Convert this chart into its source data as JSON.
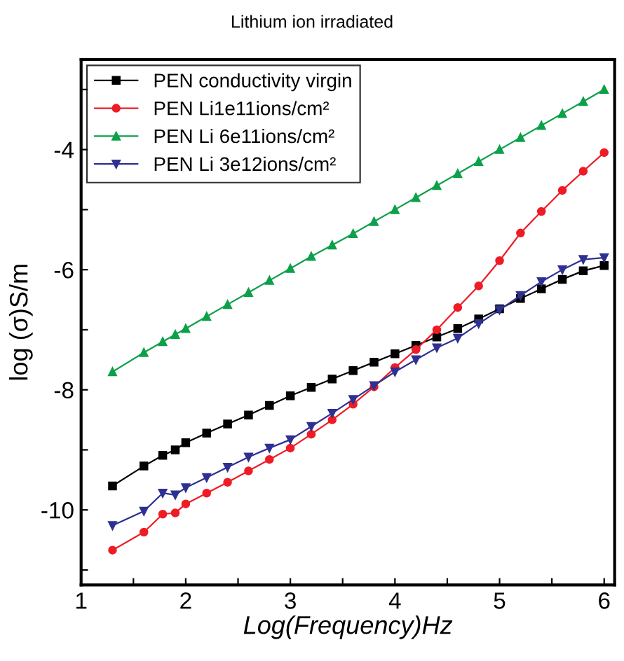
{
  "chart_data": {
    "type": "line",
    "title": "Lithium ion irradiated",
    "xlabel": "Log(Frequency)Hz",
    "ylabel": "log (σ)S/m",
    "x": [
      1.3,
      1.6,
      1.78,
      1.9,
      2.0,
      2.2,
      2.4,
      2.6,
      2.8,
      3.0,
      3.2,
      3.4,
      3.6,
      3.8,
      4.0,
      4.2,
      4.4,
      4.6,
      4.8,
      5.0,
      5.2,
      5.4,
      5.6,
      5.8,
      6.0
    ],
    "series": [
      {
        "name": "PEN conductivity virgin",
        "color": "#000000",
        "marker": "square",
        "values": [
          -9.6,
          -9.27,
          -9.09,
          -9.0,
          -8.88,
          -8.72,
          -8.57,
          -8.42,
          -8.26,
          -8.1,
          -7.96,
          -7.82,
          -7.68,
          -7.54,
          -7.4,
          -7.26,
          -7.12,
          -6.98,
          -6.82,
          -6.65,
          -6.48,
          -6.32,
          -6.16,
          -6.02,
          -5.93
        ]
      },
      {
        "name": "PEN Li1e11ions/cm²",
        "color": "#ee1c25",
        "marker": "circle",
        "values": [
          -10.67,
          -10.37,
          -10.07,
          -10.05,
          -9.9,
          -9.72,
          -9.54,
          -9.35,
          -9.16,
          -8.97,
          -8.74,
          -8.5,
          -8.24,
          -7.95,
          -7.63,
          -7.33,
          -7.0,
          -6.63,
          -6.27,
          -5.85,
          -5.39,
          -5.03,
          -4.68,
          -4.36,
          -4.05
        ]
      },
      {
        "name": "PEN Li 6e11ions/cm²",
        "color": "#0da04a",
        "marker": "triangle",
        "values": [
          -7.7,
          -7.38,
          -7.2,
          -7.08,
          -6.98,
          -6.78,
          -6.58,
          -6.38,
          -6.18,
          -5.98,
          -5.78,
          -5.59,
          -5.4,
          -5.2,
          -5.0,
          -4.8,
          -4.6,
          -4.4,
          -4.2,
          -4.0,
          -3.8,
          -3.6,
          -3.4,
          -3.2,
          -3.0
        ]
      },
      {
        "name": "PEN Li 3e12ions/cm²",
        "color": "#2e3092",
        "marker": "triangle_down",
        "values": [
          -10.26,
          -10.02,
          -9.72,
          -9.75,
          -9.63,
          -9.46,
          -9.29,
          -9.12,
          -8.97,
          -8.83,
          -8.61,
          -8.39,
          -8.16,
          -7.93,
          -7.7,
          -7.5,
          -7.3,
          -7.14,
          -6.9,
          -6.67,
          -6.43,
          -6.2,
          -6.0,
          -5.83,
          -5.8
        ]
      }
    ],
    "xlim": [
      1.0,
      6.1
    ],
    "ylim": [
      -11.25,
      -2.5
    ],
    "xticks": [
      1,
      {
        "value": 1.5,
        "label": null
      },
      2,
      {
        "value": 2.5,
        "label": null
      },
      3,
      {
        "value": 3.5,
        "label": null
      },
      4,
      {
        "value": 4.5,
        "label": null
      },
      5,
      {
        "value": 5.5,
        "label": null
      },
      6
    ],
    "yticks": [
      {
        "value": -11,
        "label": null
      },
      -10,
      {
        "value": -9,
        "label": null
      },
      -8,
      {
        "value": -7,
        "label": null
      },
      -6,
      {
        "value": -5,
        "label": null
      },
      -4,
      {
        "value": -3,
        "label": null
      }
    ],
    "grid": false,
    "legend": "top left",
    "line_style": "solid"
  }
}
